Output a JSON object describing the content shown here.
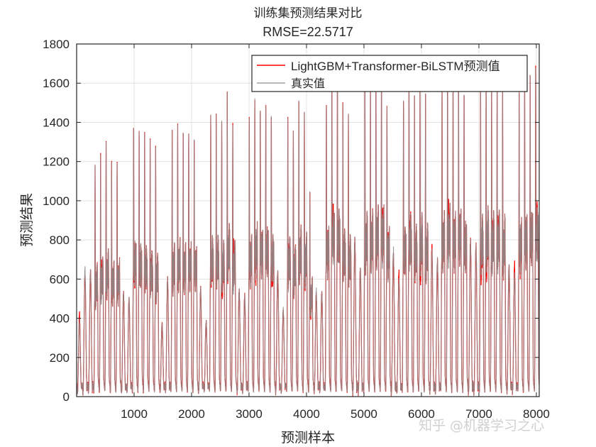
{
  "chart_data": {
    "type": "line",
    "title": "训练集预测结果对比",
    "subtitle": "RMSE=22.5717",
    "xlabel": "预测样本",
    "ylabel": "预测结果",
    "xlim": [
      0,
      8050
    ],
    "ylim": [
      0,
      1800
    ],
    "x_ticks": [
      1000,
      2000,
      3000,
      4000,
      5000,
      6000,
      7000,
      8000
    ],
    "x_tick_labels": [
      "1000",
      "2000",
      "3000",
      "4000",
      "5000",
      "6000",
      "7000",
      "8000"
    ],
    "y_ticks": [
      0,
      200,
      400,
      600,
      800,
      1000,
      1200,
      1400,
      1600,
      1800
    ],
    "y_tick_labels": [
      "0",
      "200",
      "400",
      "600",
      "800",
      "1000",
      "1200",
      "1400",
      "1600",
      "1800"
    ],
    "grid": true,
    "legend_position": "top-right",
    "series": [
      {
        "name": "LightGBM+Transformer-BiLSTM预测值",
        "color": "#ff0000",
        "role": "prediction"
      },
      {
        "name": "真实值",
        "color": "#8c8c8c",
        "role": "actual"
      }
    ],
    "x_range": [
      1,
      8050
    ],
    "daily_peaks_actual": [
      383,
      655,
      637,
      1191,
      1238,
      1310,
      1209,
      1216,
      528,
      496,
      1419,
      1390,
      1365,
      1318,
      1281,
      369,
      600,
      1361,
      1397,
      1361,
      1372,
      1361,
      547,
      383,
      1462,
      1451,
      1408,
      1553,
      1383,
      547,
      510,
      1444,
      1553,
      1517,
      1542,
      1473,
      637,
      449,
      1433,
      1354,
      1517,
      1462,
      1057,
      540,
      528,
      1535,
      1700,
      1700,
      1517,
      1462,
      804,
      655,
      1650,
      1650,
      1700,
      1700,
      1510,
      746,
      586,
      1553,
      1650,
      1546,
      1650,
      1546,
      746,
      695,
      1650,
      1700,
      1650,
      1700,
      1600,
      793,
      767,
      1650,
      1700,
      1650,
      1650,
      1600,
      666,
      619,
      1600,
      1650,
      1700,
      1720
    ]
  },
  "watermark": "知乎 @机器学习之心"
}
